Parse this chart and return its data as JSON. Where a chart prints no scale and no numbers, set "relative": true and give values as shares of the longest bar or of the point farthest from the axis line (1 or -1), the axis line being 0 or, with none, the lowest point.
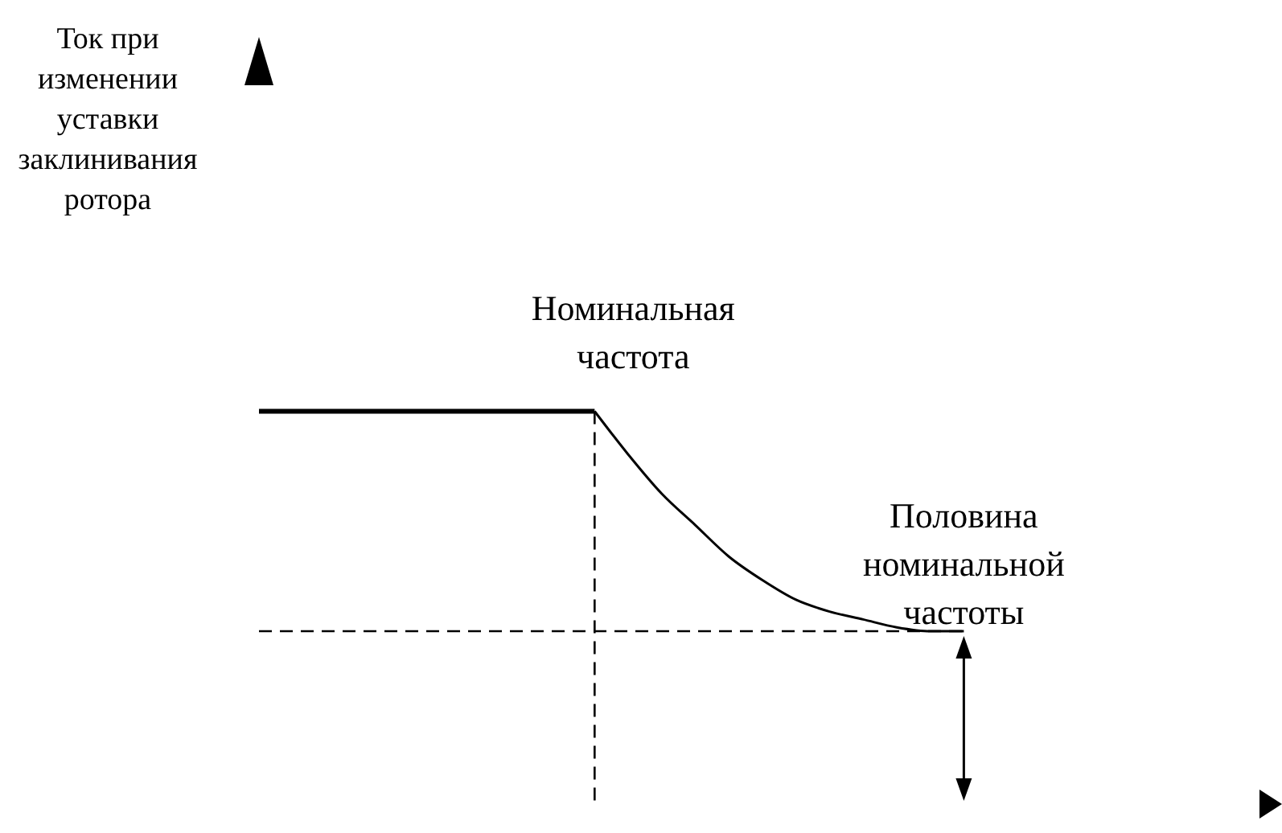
{
  "chart_data": {
    "type": "line",
    "categories": [
      null,
      null,
      null,
      null,
      null,
      null,
      null,
      null,
      null,
      null,
      null,
      null,
      null,
      null,
      null,
      null,
      null,
      null,
      null,
      null,
      null,
      null,
      null,
      null,
      null,
      null,
      null,
      null,
      null,
      null,
      null
    ],
    "relative": true,
    "series": [
      {
        "color": "#000000",
        "values": [
          1,
          1,
          1,
          1,
          1,
          1,
          1,
          1,
          1,
          1,
          1,
          null,
          null,
          null,
          null,
          null,
          null,
          null,
          null,
          null,
          null,
          null,
          null,
          null,
          null,
          null,
          null,
          null,
          null,
          null,
          null
        ]
      },
      {
        "color": "#000000",
        "values": [
          null,
          null,
          null,
          null,
          null,
          null,
          null,
          null,
          null,
          null,
          1,
          0.89,
          0.79,
          0.71,
          0.63,
          0.57,
          0.52,
          0.49,
          0.47,
          0.45,
          0.44,
          0.44,
          null,
          null,
          null,
          null,
          null,
          null,
          null,
          null,
          null
        ]
      }
    ],
    "ref_lines": [
      {
        "axis": "y",
        "value": 0.44,
        "line_style": "dashed"
      }
    ],
    "annotations": [
      "Ток при изменении уставки заклинивания ротора",
      "Номинальная частота",
      "Половина номинальной частоты"
    ]
  }
}
